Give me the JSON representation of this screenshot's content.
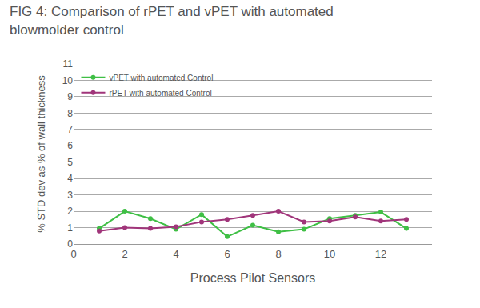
{
  "chart_data": {
    "type": "line",
    "title": "FIG 4: Comparison of rPET and vPET with automated blowmolder control",
    "x_label": "Process Pilot Sensors",
    "y_label": "% STD dev as % of wall thickness",
    "x": [
      1,
      2,
      3,
      4,
      5,
      6,
      7,
      8,
      9,
      10,
      11,
      12,
      13
    ],
    "series": [
      {
        "name": "vPET with automated Control",
        "color": "#3fbf45",
        "marker": "circle",
        "line_style": "solid",
        "values": [
          0.95,
          2.0,
          1.55,
          0.9,
          1.8,
          0.45,
          1.15,
          0.75,
          0.9,
          1.55,
          1.75,
          1.95,
          0.95
        ]
      },
      {
        "name": "rPET with automated Control",
        "color": "#a0357a",
        "marker": "circle",
        "line_style": "solid",
        "values": [
          0.8,
          1.0,
          0.95,
          1.05,
          1.35,
          1.5,
          1.75,
          2.0,
          1.35,
          1.4,
          1.65,
          1.4,
          1.5
        ]
      }
    ],
    "xlim": [
      0,
      14
    ],
    "xticks": [
      0,
      2,
      4,
      6,
      8,
      10,
      12
    ],
    "ylim": [
      0,
      11
    ],
    "yticks": [
      0,
      1,
      2,
      3,
      4,
      5,
      6,
      7,
      8,
      9,
      10,
      11
    ],
    "grid": true,
    "legend": "upper left"
  }
}
